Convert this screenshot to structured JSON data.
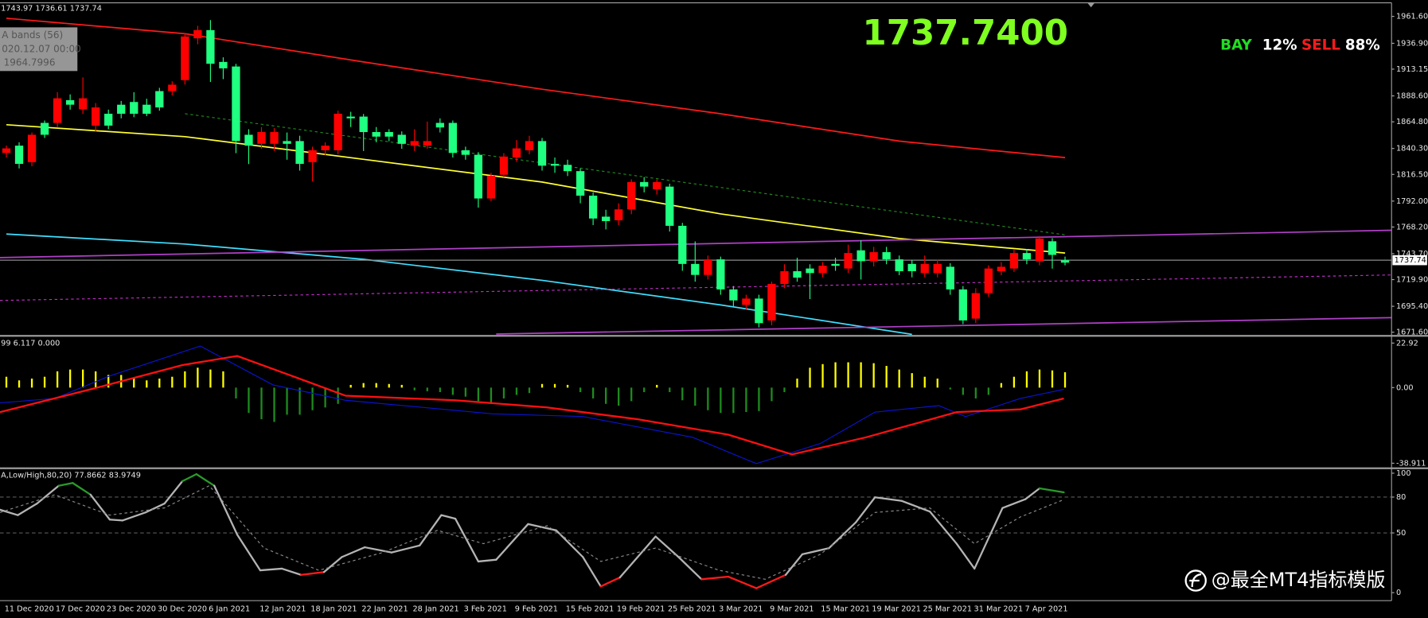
{
  "info_box": [
    "A bands (56)",
    "020.12.07 00:00",
    "1964.7996"
  ],
  "sentiment": {
    "buy_label": "BAY",
    "buy": "12%",
    "sell_label": "SELL",
    "sell": "88%"
  },
  "watermark": "@最全MT4指标模版",
  "chart_data": [
    {
      "type": "candlestick",
      "header": "1743.97 1736.61 1737.74",
      "categories": [
        "11 Dec 2020",
        null,
        null,
        null,
        "17 Dec 2020",
        null,
        null,
        null,
        "23 Dec 2020",
        null,
        null,
        null,
        "30 Dec 2020",
        null,
        null,
        null,
        "6 Jan 2021",
        null,
        null,
        null,
        "12 Jan 2021",
        null,
        null,
        null,
        "18 Jan 2021",
        null,
        null,
        null,
        "22 Jan 2021",
        null,
        null,
        null,
        "28 Jan 2021",
        null,
        null,
        null,
        "3 Feb 2021",
        null,
        null,
        null,
        "9 Feb 2021",
        null,
        null,
        null,
        "15 Feb 2021",
        null,
        null,
        null,
        "19 Feb 2021",
        null,
        null,
        null,
        "25 Feb 2021",
        null,
        null,
        null,
        "3 Mar 2021",
        null,
        null,
        null,
        "9 Mar 2021",
        null,
        null,
        null,
        "15 Mar 2021",
        null,
        null,
        null,
        "19 Mar 2021",
        null,
        null,
        null,
        "25 Mar 2021",
        null,
        null,
        null,
        "31 Mar 2021",
        null,
        null,
        null,
        "7 Apr 2021",
        null,
        null,
        null
      ],
      "open": [
        1840.4,
        1826.2,
        1852.9,
        1852.9,
        1886.4,
        1880.5,
        1886.4,
        1878.0,
        1861.3,
        1872.2,
        1872.2,
        1872.2,
        1878.0,
        1898.9,
        1943.2,
        1949.0,
        1918.1,
        1913.9,
        1847.1,
        1842.9,
        1855.4,
        1855.4,
        1844.6,
        1826.2,
        1838.7,
        1842.9,
        1872.2,
        1868.0,
        1855.4,
        1851.2,
        1851.2,
        1844.6,
        1847.1,
        1847.1,
        1859.6,
        1836.2,
        1834.5,
        1794.4,
        1815.3,
        1832.9,
        1840.4,
        1847.1,
        1824.5,
        1824.5,
        1819.5,
        1797.0,
        1776.0,
        1773.6,
        1784.4,
        1809.5,
        1805.3,
        1809.5,
        1769.3,
        1734.3,
        1724.2,
        1738.5,
        1710.9,
        1700.8,
        1702.5,
        1679.9,
        1715.9,
        1727.6,
        1721.7,
        1725.9,
        1732.6,
        1732.6,
        1744.3,
        1736.8,
        1745.1,
        1738.5,
        1727.6,
        1727.6,
        1734.3,
        1734.3,
        1710.9,
        1682.4,
        1707.5,
        1730.1,
        1731.7,
        1744.3,
        1738.5,
        1757.7,
        1742.6,
        1735.5
      ],
      "high": [
        1843,
        1846,
        1855,
        1866,
        1892,
        1890,
        1905.6,
        1882,
        1876,
        1884,
        1892,
        1886,
        1896,
        1902,
        1946,
        1953,
        1958.2,
        1924,
        1918,
        1858,
        1860,
        1859,
        1855,
        1852,
        1842,
        1846,
        1875,
        1874,
        1872,
        1860,
        1858,
        1856,
        1858,
        1865,
        1868,
        1866,
        1842,
        1837,
        1818,
        1836,
        1848,
        1852,
        1850,
        1832,
        1830,
        1822,
        1800,
        1784,
        1790,
        1812,
        1814,
        1812,
        1808,
        1772,
        1755,
        1742,
        1741,
        1714,
        1706,
        1706,
        1718,
        1734,
        1740,
        1734,
        1736,
        1740,
        1752,
        1756,
        1750,
        1750,
        1742,
        1738,
        1742,
        1738,
        1735,
        1714,
        1712,
        1733,
        1736,
        1748,
        1748,
        1760,
        1758,
        1741
      ],
      "low": [
        1832,
        1822,
        1824,
        1850,
        1860,
        1876,
        1872,
        1856,
        1858,
        1868,
        1869,
        1870,
        1875,
        1889,
        1899,
        1936,
        1901.4,
        1904,
        1836,
        1826,
        1840,
        1838,
        1830,
        1820,
        1810,
        1834,
        1835,
        1860,
        1838,
        1846,
        1847,
        1840,
        1838,
        1840,
        1855,
        1832,
        1830,
        1786,
        1792,
        1814,
        1828,
        1835,
        1820,
        1818,
        1815,
        1790,
        1770,
        1766,
        1770,
        1780,
        1800,
        1798,
        1764,
        1728,
        1718,
        1720,
        1706,
        1695,
        1692,
        1676,
        1678,
        1712,
        1718,
        1702,
        1722,
        1728,
        1726,
        1720,
        1732,
        1734,
        1724,
        1722,
        1722,
        1722,
        1706,
        1679,
        1680,
        1704,
        1724,
        1727,
        1734,
        1733,
        1730,
        1733
      ],
      "close": [
        1836.2,
        1842.9,
        1827.8,
        1863.8,
        1863.8,
        1884.7,
        1876.3,
        1861.3,
        1872.2,
        1880.5,
        1883.0,
        1880.5,
        1893.0,
        1893.0,
        1903.1,
        1941.5,
        1949.0,
        1919.8,
        1915.6,
        1852.9,
        1844.6,
        1844.6,
        1847.1,
        1847.1,
        1827.8,
        1838.7,
        1838.7,
        1869.6,
        1869.6,
        1855.4,
        1855.4,
        1852.9,
        1842.9,
        1842.9,
        1863.8,
        1863.8,
        1838.7,
        1834.5,
        1794.4,
        1816.2,
        1832.0,
        1838.7,
        1847.1,
        1826.2,
        1825.3,
        1819.5,
        1797.0,
        1777.7,
        1774.4,
        1784.4,
        1809.5,
        1802.8,
        1805.3,
        1769.3,
        1734.3,
        1724.2,
        1738.5,
        1710.9,
        1696.7,
        1702.5,
        1682.4,
        1715.9,
        1727.6,
        1730.1,
        1725.9,
        1734.3,
        1730.1,
        1746.8,
        1736.8,
        1745.1,
        1738.5,
        1734.3,
        1725.9,
        1725.9,
        1731.7,
        1710.9,
        1684.1,
        1707.5,
        1727.6,
        1730.1,
        1744.3,
        1736.8,
        1755.1,
        1737.74
      ],
      "up_color": "#1fff80",
      "down_color": "#ff0000",
      "xlim": [
        -0.5,
        108.6
      ],
      "ylim": [
        1669.1,
        1974.1
      ],
      "yticks": [
        {
          "value": 1671.6,
          "label": "1671.60"
        },
        {
          "value": 1695.4,
          "label": "1695.40"
        },
        {
          "value": 1719.9,
          "label": "1719.90"
        },
        {
          "value": 1743.7,
          "label": "1743.70"
        },
        {
          "value": 1768.2,
          "label": "1768.20"
        },
        {
          "value": 1792,
          "label": "1792.00"
        },
        {
          "value": 1816.5,
          "label": "1816.50"
        },
        {
          "value": 1840.3,
          "label": "1840.30"
        },
        {
          "value": 1864.8,
          "label": "1864.80"
        },
        {
          "value": 1888.6,
          "label": "1888.60"
        },
        {
          "value": 1913.15,
          "label": "1913.15"
        },
        {
          "value": 1936.9,
          "label": "1936.90"
        },
        {
          "value": 1961.6,
          "label": "1961.60"
        }
      ],
      "last_price": {
        "value": 1737.74,
        "label": "1737.7400"
      },
      "overlays": [
        {
          "color": "#ff1a1a",
          "x": [
            0,
            14,
            28,
            42,
            56,
            70,
            83
          ],
          "values": [
            1959.9,
            1945.7,
            1919.8,
            1894.7,
            1872.2,
            1847.1,
            1832.0
          ]
        },
        {
          "color": "#ffff33",
          "x": [
            0,
            14,
            28,
            42,
            56,
            70,
            83
          ],
          "values": [
            1862.1,
            1851.2,
            1830.4,
            1809.5,
            1780.2,
            1757.7,
            1744.3
          ]
        },
        {
          "color": "#40dfff",
          "x": [
            0,
            14,
            28,
            42,
            56,
            71
          ],
          "values": [
            1761.8,
            1752.6,
            1738.5,
            1719.2,
            1696.7,
            1669.6
          ]
        },
        {
          "color": "#b040c8",
          "x": [
            -0.5,
            108.6
          ],
          "values": [
            1740.1,
            1765.2
          ]
        },
        {
          "color": "#c030c8",
          "dashed": true,
          "x": [
            -0.5,
            108.6
          ],
          "values": [
            1700.8,
            1724.2
          ]
        },
        {
          "color": "#b040c8",
          "x": [
            38.4,
            108.6
          ],
          "values": [
            1669.9,
            1685.0
          ]
        },
        {
          "color": "#1f8a1f",
          "dashed": true,
          "x": [
            14,
            83
          ],
          "values": [
            1872.2,
            1761.0
          ]
        }
      ]
    },
    {
      "type": "macd",
      "header": "99 6.117 0.000",
      "values": [
        5.58,
        3.72,
        4.65,
        5.58,
        8.37,
        9.3,
        9.3,
        8.37,
        6.51,
        6.51,
        4.65,
        3.72,
        4.65,
        5.58,
        8.37,
        10.23,
        9.3,
        8.37,
        -5.58,
        -13.02,
        -16.28,
        -17.67,
        -13.95,
        -13.95,
        -11.63,
        -10.23,
        -8.37,
        1.4,
        2.33,
        2.33,
        1.86,
        1.4,
        -1.4,
        -1.86,
        -2.33,
        -3.72,
        -4.65,
        -6.98,
        -8.37,
        -5.58,
        -3.72,
        -2.79,
        1.86,
        1.86,
        1.4,
        -2.33,
        -5.58,
        -8.37,
        -9.3,
        -6.98,
        -2.33,
        1.4,
        -2.33,
        -6.51,
        -9.3,
        -11.63,
        -13.02,
        -13.02,
        -12.56,
        -12.09,
        -6.98,
        -2.33,
        4.65,
        10.23,
        12.09,
        13.02,
        13.02,
        13.02,
        12.56,
        11.16,
        9.3,
        7.44,
        5.58,
        4.65,
        -0.93,
        -3.72,
        -5.58,
        -3.72,
        2.33,
        5.58,
        8.37,
        9.3,
        8.84,
        7.91
      ],
      "pos_color": "#ffff00",
      "neg_color": "#1e8c1e",
      "ylim": [
        -40.8,
        25.7
      ],
      "yticks": [
        -38.911,
        {
          "value": 0,
          "label": "0.00"
        },
        22.92
      ],
      "lines": [
        {
          "color": "#0a14d0",
          "x": [
            -0.5,
            3.8,
            8.1,
            15.2,
            20.9,
            26.6,
            38.1,
            45.2,
            53.8,
            58.8,
            63.8,
            68.1,
            73.1,
            75.2,
            79.5,
            82.9
          ],
          "values": [
            -7.9,
            -5.6,
            6.0,
            21.4,
            1.4,
            -6.5,
            -13.5,
            -14.9,
            -25.6,
            -39.1,
            -28.8,
            -12.6,
            -9.3,
            -14.9,
            -5.6,
            -0.9
          ]
        },
        {
          "color": "#ff1010",
          "x": [
            -0.5,
            6.6,
            13.8,
            18.1,
            22.4,
            26.6,
            35.2,
            42.4,
            49.5,
            56.6,
            61.6,
            67.4,
            74.5,
            79.5,
            82.9
          ],
          "values": [
            -12.6,
            -0.9,
            11.6,
            16.3,
            6.0,
            -4.2,
            -6.5,
            -10.2,
            -16.3,
            -24.2,
            -34.4,
            -25.6,
            -12.6,
            -11.2,
            -5.6
          ]
        }
      ]
    },
    {
      "type": "stochastic",
      "header": "A,Low/High,80,20) 77.8662 83.9749",
      "ylim": [
        -6.7,
        103
      ],
      "yticks": [
        0,
        50,
        80,
        100
      ],
      "grid": true,
      "overbought": 80,
      "oversold": 20,
      "up_color": "#2a9a2a",
      "down_color": "#ff1a1a",
      "lines": [
        {
          "color": "#b4b4b4",
          "x": [
            -0.5,
            0.9,
            2.4,
            4.1,
            5.2,
            6.6,
            8.1,
            9.1,
            10.9,
            12.4,
            13.8,
            14.9,
            16.3,
            18.1,
            19.9,
            21.6,
            23.1,
            24.9,
            26.3,
            28.1,
            30.2,
            32.4,
            34.1,
            35.2,
            37.0,
            38.4,
            40.9,
            43.1,
            45.2,
            46.6,
            48.1,
            50.9,
            52.7,
            54.5,
            56.6,
            58.8,
            61.1,
            62.4,
            64.5,
            66.6,
            68.1,
            70.2,
            72.4,
            74.5,
            75.9,
            78.1,
            79.9,
            81.0,
            82.9
          ],
          "values": [
            69.4,
            64.9,
            74.6,
            89.5,
            91.8,
            82,
            61.2,
            60.4,
            67.1,
            74.6,
            93.3,
            99.2,
            89.5,
            48.5,
            18.7,
            20.1,
            14.9,
            17.2,
            29.8,
            38,
            33.6,
            39.5,
            64.9,
            61.9,
            26.1,
            27.6,
            57.4,
            52.2,
            29.8,
            5.2,
            12.7,
            47,
            29.8,
            11.2,
            13.4,
            3.7,
            14.9,
            32.1,
            37.3,
            58.9,
            79.8,
            76.8,
            67.9,
            41,
            20.1,
            70.9,
            78.3,
            87.3,
            83.97
          ]
        },
        {
          "color": "#8c8c8c",
          "dashed": true,
          "x": [
            -0.5,
            3.8,
            8.1,
            12.4,
            15.9,
            20.2,
            24.5,
            29.5,
            33.8,
            37.4,
            42.4,
            46.6,
            50.9,
            55.9,
            59.5,
            63.8,
            68.1,
            72.4,
            75.9,
            79.5,
            82.9
          ],
          "values": [
            67.1,
            82,
            64.9,
            70.9,
            89.5,
            37.3,
            18.7,
            33.6,
            52.2,
            41,
            56,
            26.1,
            37.3,
            18.7,
            11.2,
            32.1,
            67.1,
            70.9,
            41,
            63.4,
            77.87
          ]
        }
      ]
    }
  ]
}
